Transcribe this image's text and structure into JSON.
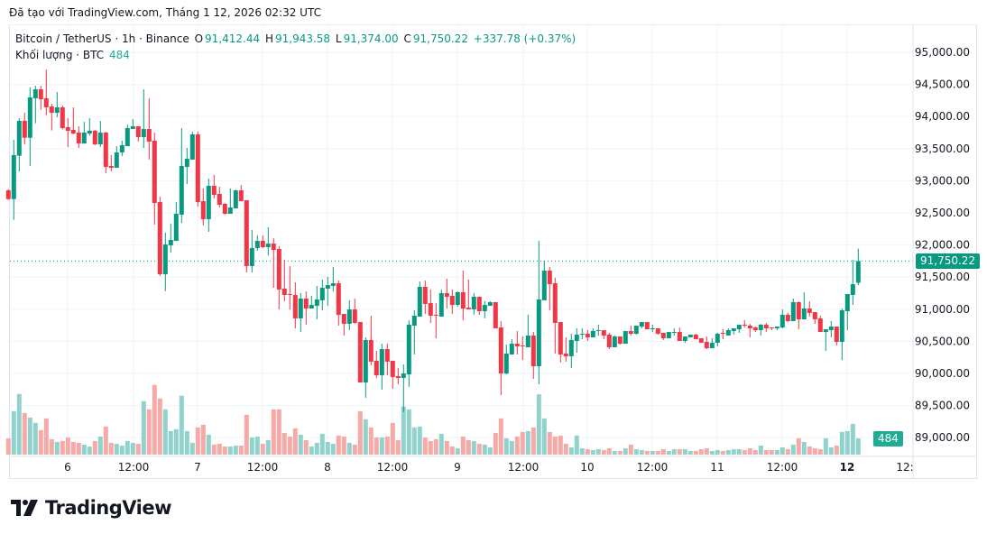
{
  "caption": "Đã tạo với TradingView.com, Tháng 1 12, 2026 02:32 UTC",
  "legend": {
    "symbol": "Bitcoin / TetherUS · 1h · Binance",
    "open_label": "O",
    "open": "91,412.44",
    "high_label": "H",
    "high": "91,943.58",
    "low_label": "L",
    "low": "91,374.00",
    "close_label": "C",
    "close": "91,750.22",
    "change": "+337.78 (+0.37%)",
    "volume_label": "Khối lượng · BTC",
    "volume": "484"
  },
  "badges": {
    "last_price": "91,750.22",
    "last_volume": "484"
  },
  "logo": {
    "text": "TradingView"
  },
  "colors": {
    "up": "#089981",
    "down": "#f23645",
    "up_volume": "#92d2cc",
    "down_volume": "#f7a9a7",
    "grid": "#f0f3fa"
  },
  "chart_data": {
    "type": "candlestick",
    "ylim": [
      88800,
      95400
    ],
    "grid": true,
    "y_ticks": [
      "95,000.00",
      "94,500.00",
      "94,000.00",
      "93,500.00",
      "93,000.00",
      "92,500.00",
      "92,000.00",
      "91,500.00",
      "91,000.00",
      "90,500.00",
      "90,000.00",
      "89,500.00",
      "89,000.00"
    ],
    "y_tick_values": [
      95000,
      94500,
      94000,
      93500,
      93000,
      92500,
      92000,
      91500,
      91000,
      90500,
      90000,
      89500,
      89000
    ],
    "x_ticks": [
      "6",
      "12:00",
      "7",
      "12:00",
      "8",
      "12:00",
      "9",
      "12:00",
      "10",
      "12:00",
      "11",
      "12:00",
      "12",
      "12:"
    ],
    "last_price": 91750.22,
    "candles_ohlc": [
      [
        92851,
        92870,
        92700,
        92715
      ],
      [
        92715,
        93638,
        92392,
        93399
      ],
      [
        93390,
        93975,
        93146,
        93933
      ],
      [
        93933,
        94059,
        93567,
        93670
      ],
      [
        93670,
        94452,
        93230,
        94298
      ],
      [
        94284,
        94480,
        93895,
        94424
      ],
      [
        94424,
        94480,
        94106,
        94270
      ],
      [
        94284,
        94733,
        94021,
        94143
      ],
      [
        94157,
        94199,
        93783,
        94059
      ],
      [
        94059,
        94382,
        93989,
        94143
      ],
      [
        94143,
        94171,
        93800,
        93820
      ],
      [
        93834,
        93975,
        93525,
        93778
      ],
      [
        93792,
        94143,
        93722,
        93736
      ],
      [
        93750,
        93848,
        93511,
        93581
      ],
      [
        93581,
        93918,
        93581,
        93750
      ],
      [
        93736,
        93975,
        93708,
        93778
      ],
      [
        93778,
        93792,
        93553,
        93567
      ],
      [
        93567,
        93932,
        93525,
        93750
      ],
      [
        93750,
        93764,
        93118,
        93216
      ],
      [
        93230,
        93399,
        93146,
        93202
      ],
      [
        93202,
        93539,
        93202,
        93441
      ],
      [
        93441,
        93624,
        93385,
        93553
      ],
      [
        93539,
        93876,
        93539,
        93820
      ],
      [
        93806,
        93961,
        93806,
        93848
      ],
      [
        93848,
        93848,
        93610,
        93680
      ],
      [
        93680,
        94424,
        93511,
        93806
      ],
      [
        93806,
        94284,
        93329,
        93610
      ],
      [
        93624,
        93750,
        92317,
        92654
      ],
      [
        92668,
        92753,
        91517,
        91545
      ],
      [
        91545,
        92191,
        91280,
        92008
      ],
      [
        91994,
        92331,
        91882,
        92079
      ],
      [
        92064,
        92668,
        92064,
        92486
      ],
      [
        92472,
        93820,
        92345,
        93230
      ],
      [
        93216,
        93511,
        92949,
        93343
      ],
      [
        93329,
        93764,
        93329,
        93722
      ],
      [
        93722,
        93764,
        92598,
        92668
      ],
      [
        92682,
        92879,
        92303,
        92402
      ],
      [
        92402,
        93034,
        92205,
        92921
      ],
      [
        92921,
        93090,
        92725,
        92781
      ],
      [
        92795,
        92907,
        92584,
        92626
      ],
      [
        92640,
        92654,
        92472,
        92486
      ],
      [
        92486,
        92879,
        92486,
        92584
      ],
      [
        92570,
        92865,
        92570,
        92851
      ],
      [
        92851,
        92935,
        92682,
        92682
      ],
      [
        92697,
        92697,
        91573,
        91671
      ],
      [
        91671,
        92233,
        91573,
        91952
      ],
      [
        91952,
        92149,
        91910,
        92064
      ],
      [
        92064,
        92149,
        91952,
        91966
      ],
      [
        91966,
        92275,
        91840,
        92022
      ],
      [
        92022,
        92106,
        91334,
        91924
      ],
      [
        91938,
        91980,
        90997,
        91306
      ],
      [
        91320,
        91770,
        91124,
        91222
      ],
      [
        91236,
        91671,
        90997,
        91222
      ],
      [
        91222,
        91419,
        90702,
        90857
      ],
      [
        90857,
        91250,
        90646,
        91166
      ],
      [
        91166,
        91278,
        90758,
        91011
      ],
      [
        91011,
        91208,
        91011,
        91067
      ],
      [
        91053,
        91362,
        90843,
        91152
      ],
      [
        91138,
        91461,
        90983,
        91334
      ],
      [
        91320,
        91503,
        91053,
        91376
      ],
      [
        91362,
        91657,
        91278,
        91404
      ],
      [
        91404,
        91447,
        90744,
        90913
      ],
      [
        90927,
        90927,
        90590,
        90773
      ],
      [
        90773,
        91138,
        90674,
        90997
      ],
      [
        90997,
        91166,
        90773,
        90787
      ],
      [
        90801,
        90801,
        89860,
        89860
      ],
      [
        89860,
        90562,
        89621,
        90520
      ],
      [
        90520,
        90899,
        90126,
        90183
      ],
      [
        90197,
        90351,
        89930,
        89972
      ],
      [
        89972,
        90463,
        89747,
        90379
      ],
      [
        90379,
        90463,
        89972,
        90183
      ],
      [
        90197,
        90197,
        89761,
        89944
      ],
      [
        89958,
        90084,
        89831,
        89930
      ],
      [
        89930,
        90140,
        89400,
        90000
      ],
      [
        89986,
        90829,
        89789,
        90758
      ],
      [
        90744,
        90983,
        90295,
        90899
      ],
      [
        90885,
        91433,
        90885,
        91348
      ],
      [
        91348,
        91447,
        90927,
        91082
      ],
      [
        91096,
        91306,
        90787,
        90899
      ],
      [
        90913,
        91096,
        90548,
        90899
      ],
      [
        90885,
        91306,
        90885,
        91250
      ],
      [
        91250,
        91475,
        91011,
        91194
      ],
      [
        91208,
        91306,
        90927,
        91067
      ],
      [
        91067,
        91278,
        91039,
        91264
      ],
      [
        91264,
        91601,
        90829,
        91011
      ],
      [
        91025,
        91461,
        90997,
        90997
      ],
      [
        90997,
        91250,
        90913,
        91194
      ],
      [
        91194,
        91194,
        90913,
        90969
      ],
      [
        90969,
        91124,
        90857,
        91067
      ],
      [
        91053,
        91124,
        91053,
        91110
      ],
      [
        91110,
        91110,
        90702,
        90702
      ],
      [
        90716,
        90815,
        89663,
        90000
      ],
      [
        90000,
        90449,
        89986,
        90309
      ],
      [
        90295,
        90534,
        90295,
        90463
      ],
      [
        90463,
        90660,
        90295,
        90421
      ],
      [
        90435,
        90576,
        90211,
        90421
      ],
      [
        90407,
        90913,
        90407,
        90590
      ],
      [
        90590,
        90646,
        89916,
        90112
      ],
      [
        90112,
        92065,
        89831,
        91152
      ],
      [
        91138,
        91756,
        91138,
        91601
      ],
      [
        91601,
        91657,
        90983,
        91390
      ],
      [
        91404,
        91489,
        90309,
        90787
      ],
      [
        90800,
        90800,
        90168,
        90295
      ],
      [
        90309,
        90562,
        90182,
        90267
      ],
      [
        90267,
        90618,
        90084,
        90520
      ],
      [
        90506,
        90702,
        90323,
        90604
      ],
      [
        90604,
        90702,
        90534,
        90618
      ],
      [
        90618,
        90674,
        90506,
        90562
      ],
      [
        90562,
        90702,
        90562,
        90660
      ],
      [
        90660,
        90758,
        90590,
        90674
      ],
      [
        90674,
        90674,
        90534,
        90590
      ],
      [
        90604,
        90632,
        90379,
        90407
      ],
      [
        90407,
        90590,
        90407,
        90576
      ],
      [
        90576,
        90576,
        90449,
        90463
      ],
      [
        90463,
        90660,
        90463,
        90660
      ],
      [
        90660,
        90744,
        90590,
        90618
      ],
      [
        90618,
        90744,
        90604,
        90744
      ],
      [
        90730,
        90800,
        90702,
        90800
      ],
      [
        90800,
        90800,
        90688,
        90688
      ],
      [
        90688,
        90758,
        90646,
        90702
      ],
      [
        90702,
        90702,
        90604,
        90618
      ],
      [
        90632,
        90632,
        90520,
        90548
      ],
      [
        90548,
        90646,
        90548,
        90646
      ],
      [
        90632,
        90702,
        90590,
        90646
      ],
      [
        90646,
        90716,
        90506,
        90506
      ],
      [
        90506,
        90576,
        90478,
        90576
      ],
      [
        90562,
        90604,
        90562,
        90604
      ],
      [
        90604,
        90618,
        90534,
        90534
      ],
      [
        90548,
        90548,
        90478,
        90478
      ],
      [
        90491,
        90576,
        90379,
        90393
      ],
      [
        90393,
        90548,
        90393,
        90478
      ],
      [
        90478,
        90632,
        90421,
        90618
      ],
      [
        90632,
        90688,
        90534,
        90618
      ],
      [
        90590,
        90702,
        90590,
        90674
      ],
      [
        90660,
        90702,
        90604,
        90702
      ],
      [
        90688,
        90758,
        90632,
        90758
      ],
      [
        90758,
        90829,
        90716,
        90744
      ],
      [
        90744,
        90772,
        90562,
        90702
      ],
      [
        90716,
        90730,
        90646,
        90674
      ],
      [
        90674,
        90772,
        90590,
        90758
      ],
      [
        90758,
        90787,
        90646,
        90702
      ],
      [
        90716,
        90716,
        90674,
        90702
      ],
      [
        90702,
        90730,
        90674,
        90730
      ],
      [
        90716,
        90997,
        90702,
        90913
      ],
      [
        90913,
        90941,
        90801,
        90815
      ],
      [
        90815,
        91166,
        90815,
        91110
      ],
      [
        91110,
        91124,
        90688,
        90843
      ],
      [
        90843,
        91264,
        90843,
        91011
      ],
      [
        91011,
        91124,
        90885,
        90941
      ],
      [
        90955,
        90955,
        90772,
        90843
      ],
      [
        90857,
        90899,
        90646,
        90646
      ],
      [
        90646,
        90688,
        90351,
        90688
      ],
      [
        90674,
        90815,
        90562,
        90730
      ],
      [
        90730,
        90730,
        90435,
        90491
      ],
      [
        90491,
        91011,
        90211,
        90983
      ],
      [
        90969,
        91236,
        90674,
        91236
      ],
      [
        91222,
        91770,
        91067,
        91390
      ],
      [
        91412.44,
        91943.58,
        91374,
        91750.22
      ]
    ],
    "volumes": [
      486,
      1296,
      1809,
      1242,
      1107,
      945,
      729,
      1080,
      459,
      378,
      405,
      513,
      378,
      351,
      297,
      243,
      405,
      540,
      837,
      351,
      324,
      270,
      405,
      351,
      324,
      1593,
      1350,
      2079,
      1674,
      1350,
      702,
      756,
      1755,
      702,
      351,
      810,
      891,
      594,
      297,
      324,
      243,
      243,
      270,
      270,
      1188,
      513,
      540,
      324,
      432,
      1350,
      1350,
      648,
      540,
      783,
      594,
      432,
      243,
      351,
      621,
      378,
      324,
      567,
      540,
      351,
      297,
      1296,
      1053,
      810,
      513,
      513,
      540,
      945,
      432,
      1431,
      1350,
      810,
      837,
      513,
      405,
      459,
      621,
      405,
      243,
      189,
      540,
      432,
      405,
      324,
      297,
      216,
      648,
      1080,
      486,
      405,
      540,
      675,
      702,
      810,
      1800,
      1080,
      675,
      540,
      567,
      324,
      216,
      567,
      189,
      162,
      135,
      162,
      135,
      189,
      108,
      108,
      189,
      297,
      162,
      135,
      108,
      108,
      108,
      162,
      108,
      162,
      162,
      162,
      108,
      108,
      162,
      189,
      108,
      135,
      108,
      135,
      162,
      162,
      135,
      189,
      135,
      270,
      135,
      135,
      135,
      216,
      162,
      297,
      486,
      378,
      243,
      189,
      162,
      486,
      216,
      270,
      675,
      702,
      918,
      484
    ]
  }
}
